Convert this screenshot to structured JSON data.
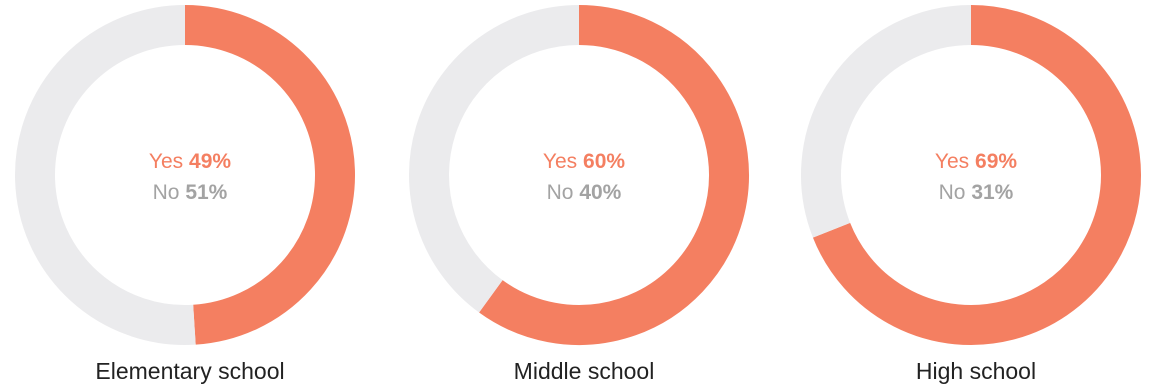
{
  "chart_data": [
    {
      "type": "pie",
      "variant": "donut",
      "label": "Elementary school",
      "slices": [
        {
          "label": "Yes",
          "value": 49,
          "display": "49%"
        },
        {
          "label": "No",
          "value": 51,
          "display": "51%"
        }
      ]
    },
    {
      "type": "pie",
      "variant": "donut",
      "label": "Middle school",
      "slices": [
        {
          "label": "Yes",
          "value": 60,
          "display": "60%"
        },
        {
          "label": "No",
          "value": 40,
          "display": "40%"
        }
      ]
    },
    {
      "type": "pie",
      "variant": "donut",
      "label": "High school",
      "slices": [
        {
          "label": "Yes",
          "value": 69,
          "display": "69%"
        },
        {
          "label": "No",
          "value": 31,
          "display": "31%"
        }
      ]
    }
  ],
  "colors": {
    "yes": "#f47f61",
    "no": "#ebebed",
    "yes_text": "#f47f61",
    "no_text": "#a3a3a3",
    "label_text": "#222222"
  }
}
